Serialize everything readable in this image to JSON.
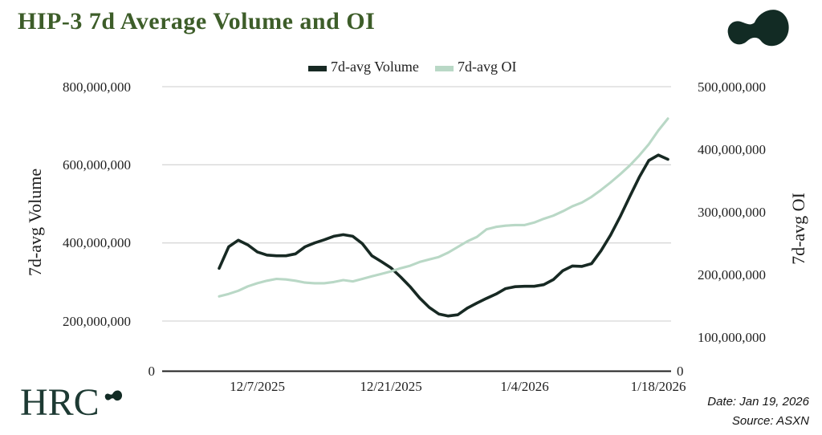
{
  "title": "HIP-3 7d Average Volume and OI",
  "colors": {
    "title": "#3d5d29",
    "volume_line": "#172923",
    "oi_line": "#b9d8c6",
    "grid": "#d8d8d8",
    "axis": "#1f1f1f",
    "logo": "#122b24",
    "brand_text": "#1d3a33"
  },
  "legend": [
    {
      "label": "7d-avg Volume",
      "color": "#172923"
    },
    {
      "label": "7d-avg OI",
      "color": "#b9d8c6"
    }
  ],
  "left_axis": {
    "label": "7d-avg Volume",
    "ticks": [
      "800,000,000",
      "600,000,000",
      "400,000,000",
      "200,000,000"
    ],
    "zero": "0"
  },
  "right_axis": {
    "label": "7d-avg OI",
    "ticks": [
      "500,000,000",
      "400,000,000",
      "300,000,000",
      "200,000,000",
      "100,000,000"
    ],
    "zero": "0"
  },
  "x_axis": {
    "ticks": [
      "12/7/2025",
      "12/21/2025",
      "1/4/2026",
      "1/18/2026"
    ]
  },
  "footer": {
    "brand": "HRC",
    "date": "Date: Jan 19, 2026",
    "source": "Source: ASXN"
  },
  "chart_data": {
    "type": "line",
    "title": "HIP-3 7d Average Volume and OI",
    "x": [
      "12/3/2025",
      "12/4/2025",
      "12/5/2025",
      "12/6/2025",
      "12/7/2025",
      "12/8/2025",
      "12/9/2025",
      "12/10/2025",
      "12/11/2025",
      "12/12/2025",
      "12/13/2025",
      "12/14/2025",
      "12/15/2025",
      "12/16/2025",
      "12/17/2025",
      "12/18/2025",
      "12/19/2025",
      "12/20/2025",
      "12/21/2025",
      "12/22/2025",
      "12/23/2025",
      "12/24/2025",
      "12/25/2025",
      "12/26/2025",
      "12/27/2025",
      "12/28/2025",
      "12/29/2025",
      "12/30/2025",
      "12/31/2025",
      "1/1/2026",
      "1/2/2026",
      "1/3/2026",
      "1/4/2026",
      "1/5/2026",
      "1/6/2026",
      "1/7/2026",
      "1/8/2026",
      "1/9/2026",
      "1/10/2026",
      "1/11/2026",
      "1/12/2026",
      "1/13/2026",
      "1/14/2026",
      "1/15/2026",
      "1/16/2026",
      "1/17/2026",
      "1/18/2026",
      "1/19/2026"
    ],
    "series": [
      {
        "name": "7d-avg Volume",
        "axis": "left",
        "color": "#172923",
        "values": [
          335000000,
          390000000,
          407000000,
          395000000,
          377000000,
          369000000,
          367000000,
          367000000,
          372000000,
          390000000,
          400000000,
          408000000,
          417000000,
          421000000,
          417000000,
          398000000,
          367000000,
          352000000,
          336000000,
          313000000,
          288000000,
          259000000,
          235000000,
          218000000,
          213000000,
          216000000,
          233000000,
          246000000,
          258000000,
          269000000,
          283000000,
          288000000,
          289000000,
          289000000,
          293000000,
          306000000,
          329000000,
          341000000,
          340000000,
          347000000,
          380000000,
          420000000,
          467000000,
          518000000,
          568000000,
          611000000,
          625000000,
          614000000
        ]
      },
      {
        "name": "7d-avg OI",
        "axis": "right",
        "color": "#b9d8c6",
        "values": [
          165000000,
          169000000,
          174000000,
          181000000,
          186000000,
          190000000,
          193000000,
          192000000,
          190000000,
          187000000,
          186000000,
          186000000,
          188000000,
          191000000,
          189000000,
          193000000,
          197000000,
          201000000,
          205000000,
          210000000,
          214000000,
          220000000,
          224000000,
          228000000,
          235000000,
          244000000,
          253000000,
          260000000,
          272000000,
          276000000,
          278000000,
          279000000,
          279000000,
          283000000,
          289000000,
          294000000,
          301000000,
          309000000,
          315000000,
          324000000,
          335000000,
          347000000,
          360000000,
          374000000,
          390000000,
          408000000,
          430000000,
          449000000
        ]
      }
    ],
    "left_ylim": [
      0,
      800000000
    ],
    "right_ylim": [
      0,
      500000000
    ],
    "xlabel": "",
    "ylabel_left": "7d-avg Volume",
    "ylabel_right": "7d-avg OI",
    "grid": "horizontal",
    "legend_position": "top"
  }
}
